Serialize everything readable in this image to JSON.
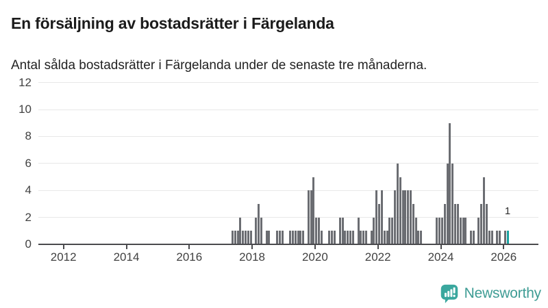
{
  "title": "En försäljning av bostadsrätter i Färgelanda",
  "subtitle": "Antal sålda bostadsrätter i Färgelanda under de senaste tre månaderna.",
  "branding": {
    "name": "Newsworthy",
    "icon": "newsworthy-logo-icon",
    "icon_color": "#3aa79e",
    "text_color": "#3e9c94"
  },
  "chart_data": {
    "type": "bar",
    "title": "En försäljning av bostadsrätter i Färgelanda",
    "subtitle": "Antal sålda bostadsrätter i Färgelanda under de senaste tre månaderna.",
    "grid": true,
    "ylim": [
      0,
      12
    ],
    "yticks": [
      0,
      2,
      4,
      6,
      8,
      10,
      12
    ],
    "xticks": [
      2012,
      2014,
      2016,
      2018,
      2020,
      2022,
      2024,
      2026
    ],
    "x_range_years": [
      2011.2,
      2027.1
    ],
    "bar_color": "#6b6d72",
    "highlight_color": "#17a2a0",
    "series_start": "2017-05",
    "series_end": "2026-02",
    "values": [
      1,
      1,
      1,
      2,
      1,
      1,
      1,
      1,
      0,
      2,
      3,
      2,
      0,
      1,
      1,
      0,
      0,
      1,
      1,
      1,
      0,
      0,
      1,
      1,
      1,
      1,
      1,
      1,
      0,
      4,
      4,
      5,
      2,
      2,
      1,
      0,
      0,
      1,
      1,
      1,
      0,
      2,
      2,
      1,
      1,
      1,
      1,
      0,
      2,
      1,
      1,
      1,
      0,
      1,
      2,
      4,
      3,
      4,
      1,
      1,
      2,
      2,
      4,
      6,
      5,
      4,
      4,
      4,
      4,
      3,
      2,
      1,
      1,
      0,
      0,
      0,
      0,
      0,
      2,
      2,
      2,
      3,
      6,
      9,
      6,
      3,
      3,
      2,
      2,
      2,
      0,
      1,
      1,
      0,
      2,
      3,
      5,
      3,
      1,
      1,
      0,
      1,
      1,
      0,
      1,
      1
    ],
    "highlight_last": true,
    "last_value_label": "1"
  }
}
